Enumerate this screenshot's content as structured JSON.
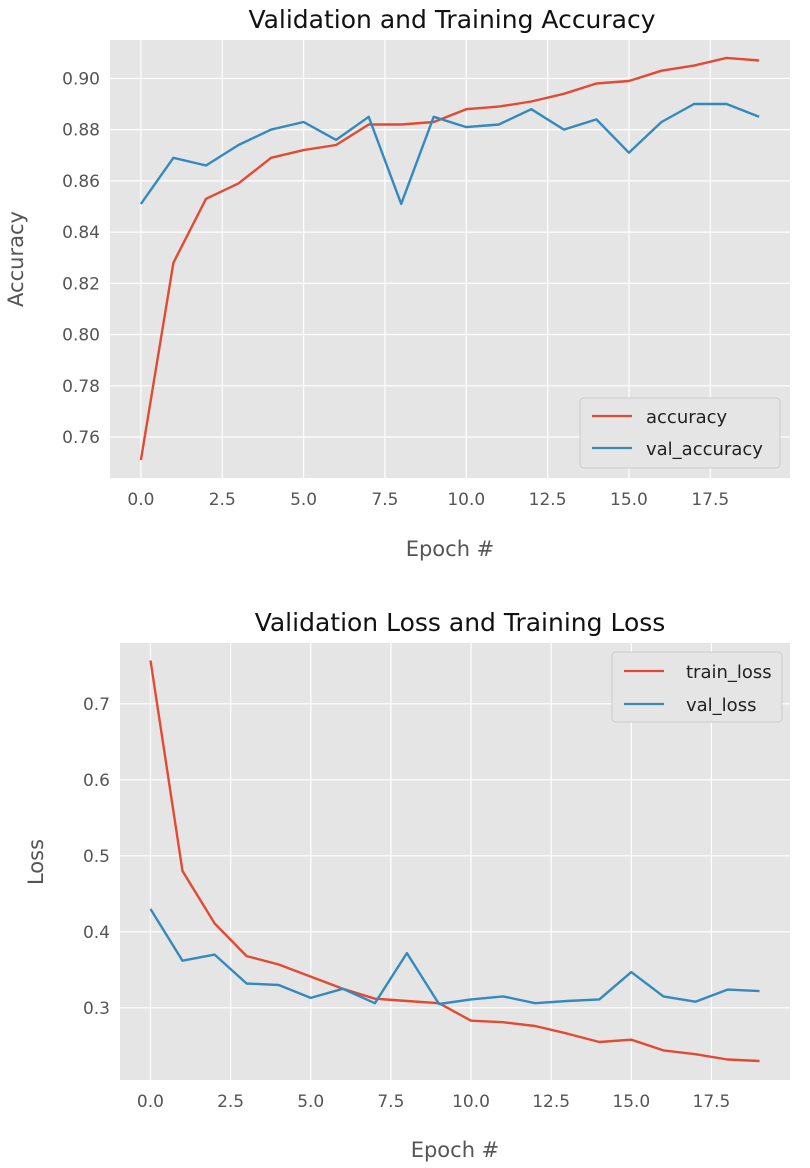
{
  "chart_data": [
    {
      "type": "line",
      "title": "Validation and Training Accuracy",
      "xlabel": "Epoch #",
      "ylabel": "Accuracy",
      "xlim": [
        -0.95,
        19.95
      ],
      "ylim": [
        0.744,
        0.915
      ],
      "xticks": [
        0,
        2.5,
        5,
        7.5,
        10,
        12.5,
        15,
        17.5
      ],
      "xtick_labels": [
        "0.0",
        "2.5",
        "5.0",
        "7.5",
        "10.0",
        "12.5",
        "15.0",
        "17.5"
      ],
      "yticks": [
        0.76,
        0.78,
        0.8,
        0.82,
        0.84,
        0.86,
        0.88,
        0.9
      ],
      "ytick_labels": [
        "0.76",
        "0.78",
        "0.80",
        "0.82",
        "0.84",
        "0.86",
        "0.88",
        "0.90"
      ],
      "grid": true,
      "legend_position": "lower-right",
      "x": [
        0,
        1,
        2,
        3,
        4,
        5,
        6,
        7,
        8,
        9,
        10,
        11,
        12,
        13,
        14,
        15,
        16,
        17,
        18,
        19
      ],
      "series": [
        {
          "name": "accuracy",
          "color": "#E24A33",
          "values": [
            0.751,
            0.828,
            0.853,
            0.859,
            0.869,
            0.872,
            0.874,
            0.882,
            0.882,
            0.883,
            0.888,
            0.889,
            0.891,
            0.894,
            0.898,
            0.899,
            0.903,
            0.905,
            0.908,
            0.907
          ]
        },
        {
          "name": "val_accuracy",
          "color": "#348ABD",
          "values": [
            0.851,
            0.869,
            0.866,
            0.874,
            0.88,
            0.883,
            0.876,
            0.885,
            0.851,
            0.885,
            0.881,
            0.882,
            0.888,
            0.88,
            0.884,
            0.871,
            0.883,
            0.89,
            0.89,
            0.885
          ]
        }
      ]
    },
    {
      "type": "line",
      "title": "Validation Loss and Training Loss",
      "xlabel": "Epoch #",
      "ylabel": "Loss",
      "xlim": [
        -0.95,
        19.95
      ],
      "ylim": [
        0.205,
        0.78
      ],
      "xticks": [
        0,
        2.5,
        5,
        7.5,
        10,
        12.5,
        15,
        17.5
      ],
      "xtick_labels": [
        "0.0",
        "2.5",
        "5.0",
        "7.5",
        "10.0",
        "12.5",
        "15.0",
        "17.5"
      ],
      "yticks": [
        0.3,
        0.4,
        0.5,
        0.6,
        0.7
      ],
      "ytick_labels": [
        "0.3",
        "0.4",
        "0.5",
        "0.6",
        "0.7"
      ],
      "grid": true,
      "legend_position": "upper-right",
      "x": [
        0,
        1,
        2,
        3,
        4,
        5,
        6,
        7,
        8,
        9,
        10,
        11,
        12,
        13,
        14,
        15,
        16,
        17,
        18,
        19
      ],
      "series": [
        {
          "name": "train_loss",
          "color": "#E24A33",
          "values": [
            0.757,
            0.48,
            0.411,
            0.368,
            0.357,
            0.341,
            0.325,
            0.312,
            0.309,
            0.306,
            0.283,
            0.281,
            0.276,
            0.266,
            0.255,
            0.258,
            0.244,
            0.239,
            0.232,
            0.23
          ]
        },
        {
          "name": "val_loss",
          "color": "#348ABD",
          "values": [
            0.43,
            0.362,
            0.37,
            0.332,
            0.33,
            0.313,
            0.325,
            0.306,
            0.372,
            0.305,
            0.311,
            0.315,
            0.306,
            0.309,
            0.311,
            0.347,
            0.315,
            0.308,
            0.324,
            0.322
          ]
        }
      ]
    }
  ]
}
